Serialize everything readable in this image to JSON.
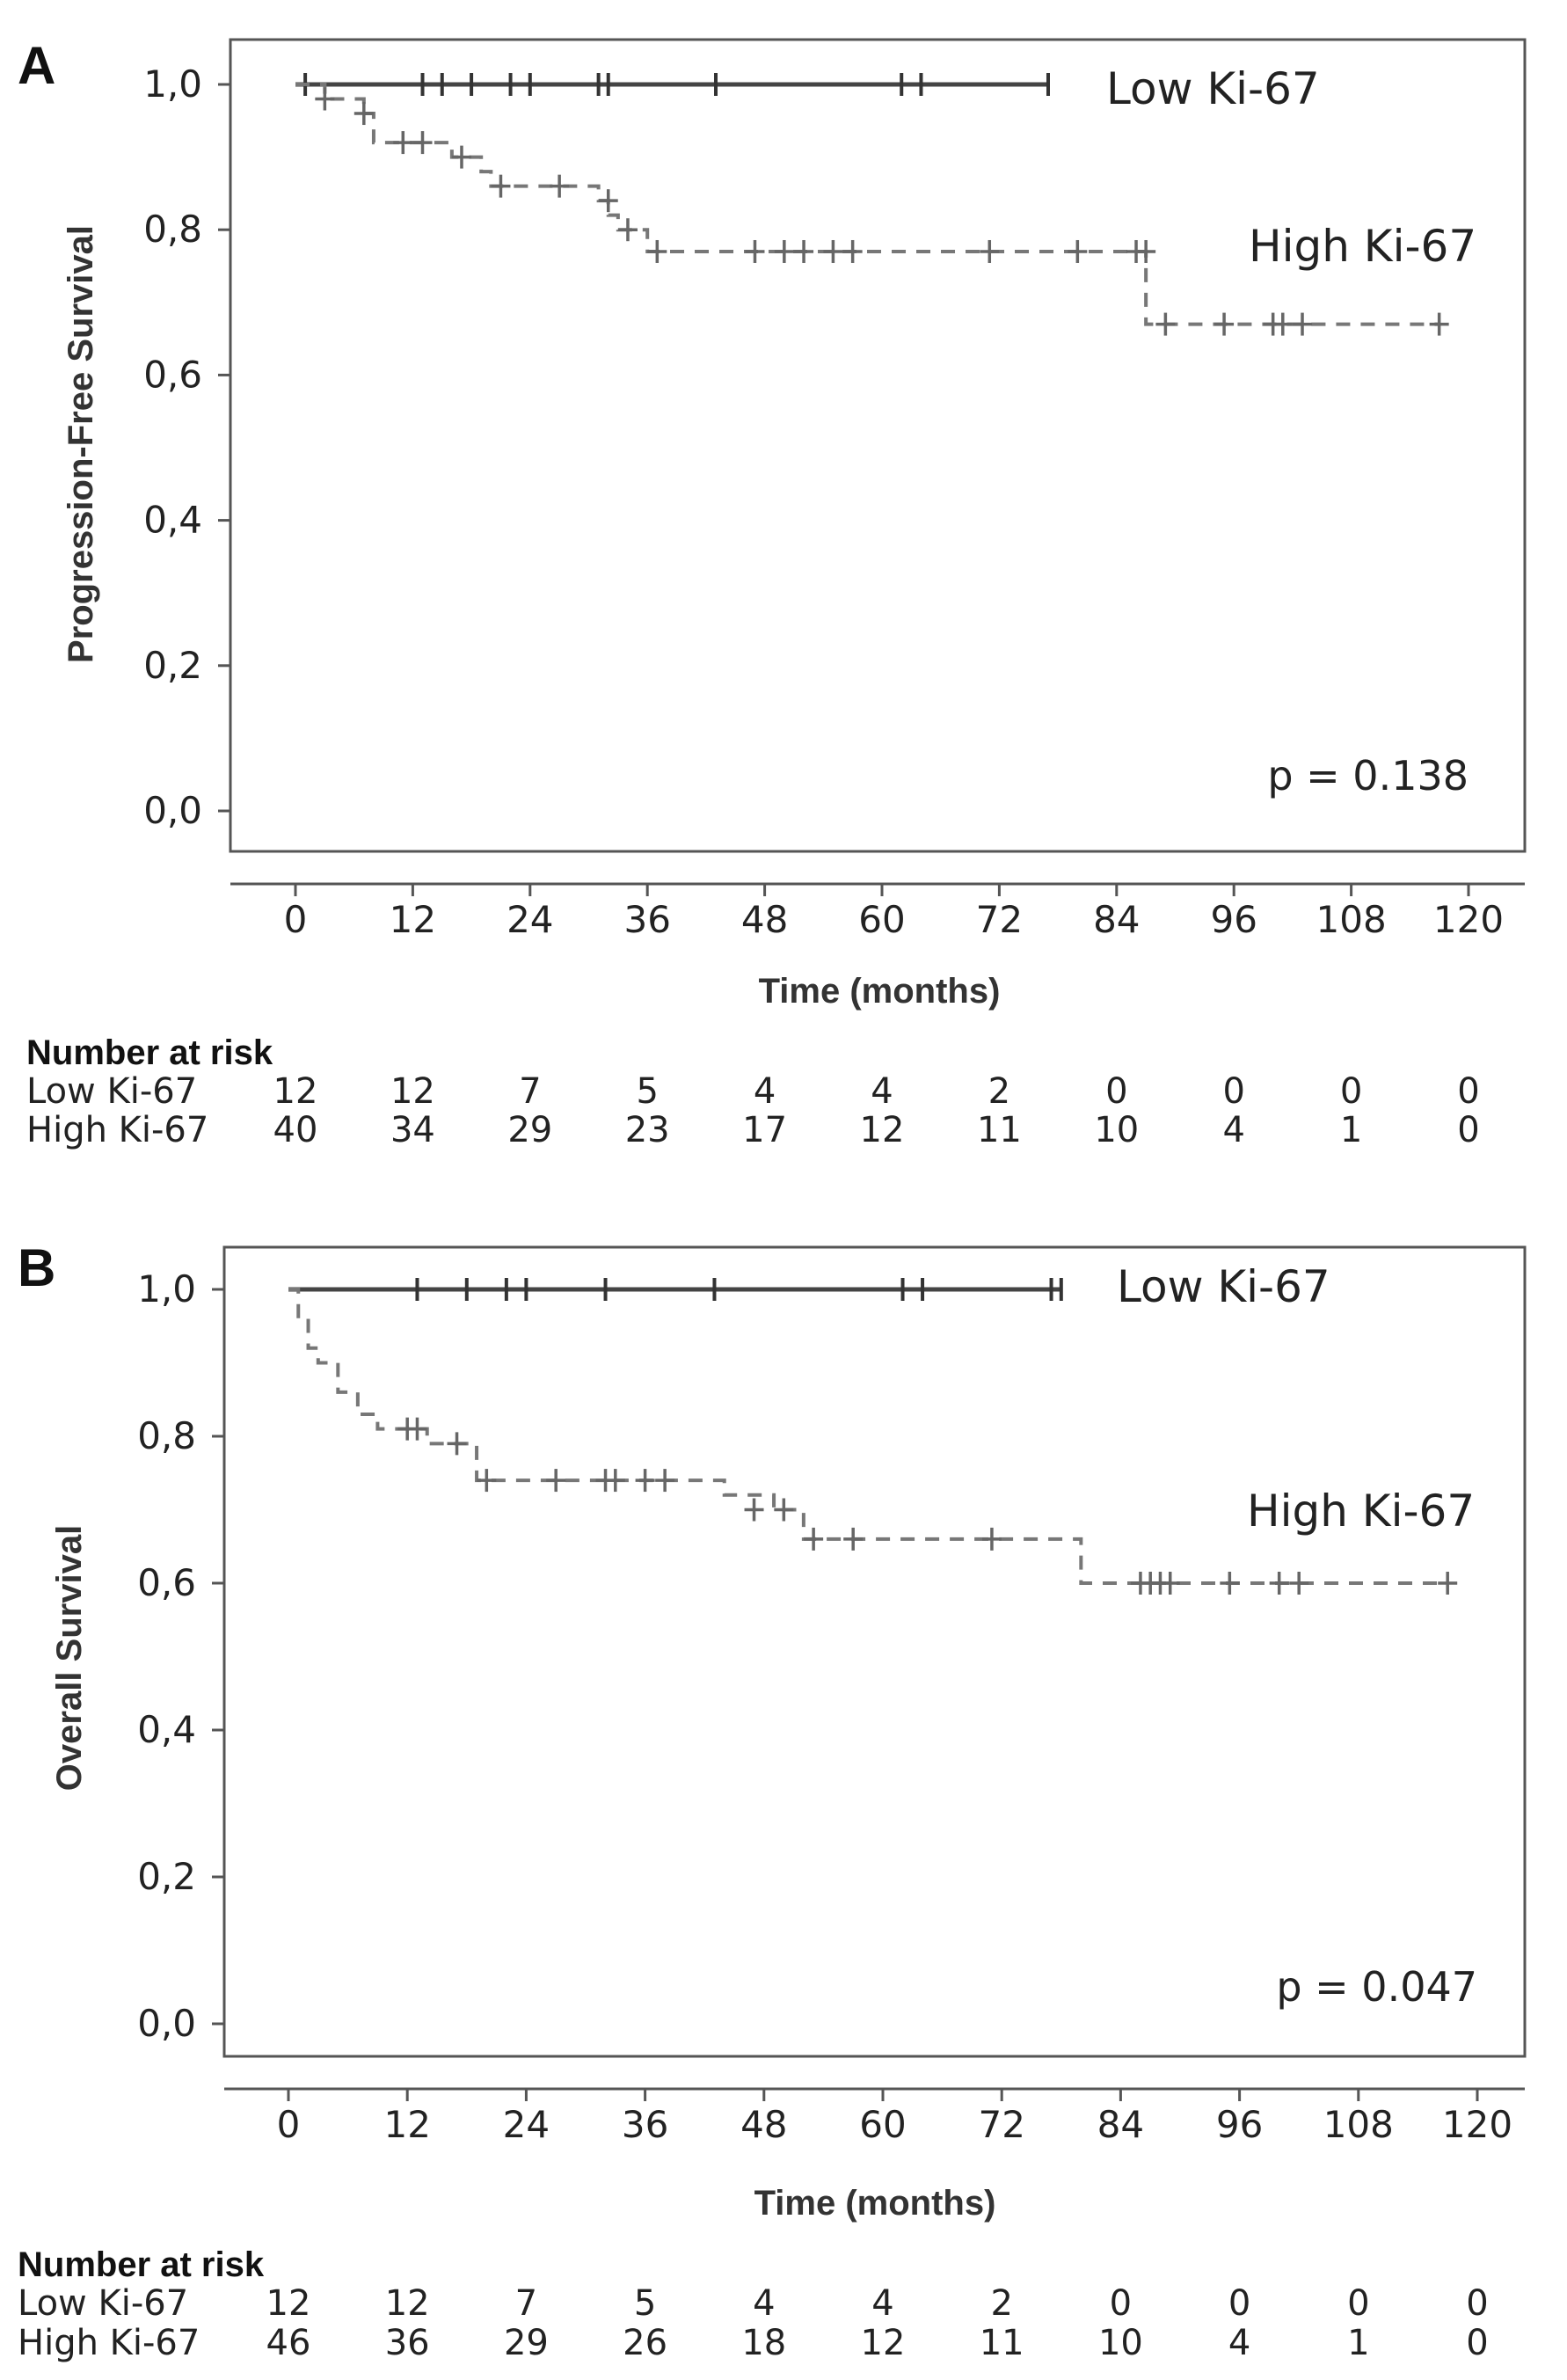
{
  "chart_data": [
    {
      "type": "line",
      "panel": "A",
      "title": "",
      "xlabel": "Time (months)",
      "ylabel": "Progression-Free Survival",
      "xlim": [
        0,
        120
      ],
      "ylim": [
        0,
        1
      ],
      "x_ticks": [
        "0",
        "12",
        "24",
        "36",
        "48",
        "60",
        "72",
        "84",
        "96",
        "108",
        "120"
      ],
      "y_ticks": [
        "0,0",
        "0,2",
        "0,4",
        "0,6",
        "0,8",
        "1,0"
      ],
      "p_value": "p = 0.138",
      "series": [
        {
          "name": "Low Ki-67",
          "style": "solid",
          "steps": [
            [
              0,
              1.0
            ],
            [
              77,
              1.0
            ]
          ],
          "censor": [
            [
              1,
              1.0
            ],
            [
              13,
              1.0
            ],
            [
              15,
              1.0
            ],
            [
              18,
              1.0
            ],
            [
              22,
              1.0
            ],
            [
              24,
              1.0
            ],
            [
              31,
              1.0
            ],
            [
              32,
              1.0
            ],
            [
              43,
              1.0
            ],
            [
              62,
              1.0
            ],
            [
              64,
              1.0
            ],
            [
              77,
              1.0
            ]
          ]
        },
        {
          "name": "High Ki-67",
          "style": "dashed",
          "steps": [
            [
              0,
              1.0
            ],
            [
              3,
              0.98
            ],
            [
              7,
              0.96
            ],
            [
              8,
              0.92
            ],
            [
              16,
              0.9
            ],
            [
              19,
              0.88
            ],
            [
              20,
              0.86
            ],
            [
              31,
              0.84
            ],
            [
              32,
              0.82
            ],
            [
              33,
              0.8
            ],
            [
              36,
              0.77
            ],
            [
              87,
              0.67
            ],
            [
              117,
              0.67
            ]
          ],
          "censor": [
            [
              3,
              0.98
            ],
            [
              7,
              0.96
            ],
            [
              11,
              0.92
            ],
            [
              13,
              0.92
            ],
            [
              17,
              0.9
            ],
            [
              21,
              0.86
            ],
            [
              27,
              0.86
            ],
            [
              32,
              0.84
            ],
            [
              34,
              0.8
            ],
            [
              37,
              0.77
            ],
            [
              47,
              0.77
            ],
            [
              50,
              0.77
            ],
            [
              52,
              0.77
            ],
            [
              55,
              0.77
            ],
            [
              57,
              0.77
            ],
            [
              71,
              0.77
            ],
            [
              80,
              0.77
            ],
            [
              86,
              0.77
            ],
            [
              87,
              0.77
            ],
            [
              89,
              0.67
            ],
            [
              95,
              0.67
            ],
            [
              100,
              0.67
            ],
            [
              101,
              0.67
            ],
            [
              103,
              0.67
            ],
            [
              117,
              0.67
            ]
          ]
        }
      ],
      "risk_table": {
        "title": "Number at risk",
        "rows": [
          {
            "label": "Low Ki-67",
            "values": [
              "12",
              "12",
              "7",
              "5",
              "4",
              "4",
              "2",
              "0",
              "0",
              "0",
              "0"
            ]
          },
          {
            "label": "High Ki-67",
            "values": [
              "40",
              "34",
              "29",
              "23",
              "17",
              "12",
              "11",
              "10",
              "4",
              "1",
              "0"
            ]
          }
        ]
      }
    },
    {
      "type": "line",
      "panel": "B",
      "title": "",
      "xlabel": "Time (months)",
      "ylabel": "Overall Survival",
      "xlim": [
        0,
        120
      ],
      "ylim": [
        0,
        1
      ],
      "x_ticks": [
        "0",
        "12",
        "24",
        "36",
        "48",
        "60",
        "72",
        "84",
        "96",
        "108",
        "120"
      ],
      "y_ticks": [
        "0,0",
        "0,2",
        "0,4",
        "0,6",
        "0,8",
        "1,0"
      ],
      "p_value": "p = 0.047",
      "series": [
        {
          "name": "Low Ki-67",
          "style": "solid",
          "steps": [
            [
              0,
              1.0
            ],
            [
              78,
              1.0
            ]
          ],
          "censor": [
            [
              13,
              1.0
            ],
            [
              18,
              1.0
            ],
            [
              22,
              1.0
            ],
            [
              24,
              1.0
            ],
            [
              32,
              1.0
            ],
            [
              43,
              1.0
            ],
            [
              62,
              1.0
            ],
            [
              64,
              1.0
            ],
            [
              77,
              1.0
            ],
            [
              78,
              1.0
            ]
          ]
        },
        {
          "name": "High Ki-67",
          "style": "dashed",
          "steps": [
            [
              0,
              1.0
            ],
            [
              1,
              0.96
            ],
            [
              2,
              0.92
            ],
            [
              3,
              0.9
            ],
            [
              5,
              0.86
            ],
            [
              7,
              0.83
            ],
            [
              9,
              0.81
            ],
            [
              14,
              0.79
            ],
            [
              19,
              0.74
            ],
            [
              44,
              0.72
            ],
            [
              49,
              0.7
            ],
            [
              52,
              0.66
            ],
            [
              80,
              0.6
            ],
            [
              117,
              0.6
            ]
          ],
          "censor": [
            [
              12,
              0.81
            ],
            [
              13,
              0.81
            ],
            [
              17,
              0.79
            ],
            [
              20,
              0.74
            ],
            [
              27,
              0.74
            ],
            [
              32,
              0.74
            ],
            [
              33,
              0.74
            ],
            [
              36,
              0.74
            ],
            [
              38,
              0.74
            ],
            [
              47,
              0.7
            ],
            [
              50,
              0.7
            ],
            [
              53,
              0.66
            ],
            [
              57,
              0.66
            ],
            [
              71,
              0.66
            ],
            [
              86,
              0.6
            ],
            [
              87,
              0.6
            ],
            [
              88,
              0.6
            ],
            [
              89,
              0.6
            ],
            [
              95,
              0.6
            ],
            [
              100,
              0.6
            ],
            [
              102,
              0.6
            ],
            [
              117,
              0.6
            ]
          ]
        }
      ],
      "risk_table": {
        "title": "Number at risk",
        "rows": [
          {
            "label": "Low Ki-67",
            "values": [
              "12",
              "12",
              "7",
              "5",
              "4",
              "4",
              "2",
              "0",
              "0",
              "0",
              "0"
            ]
          },
          {
            "label": "High Ki-67",
            "values": [
              "46",
              "36",
              "29",
              "26",
              "18",
              "12",
              "11",
              "10",
              "4",
              "1",
              "0"
            ]
          }
        ]
      }
    }
  ]
}
